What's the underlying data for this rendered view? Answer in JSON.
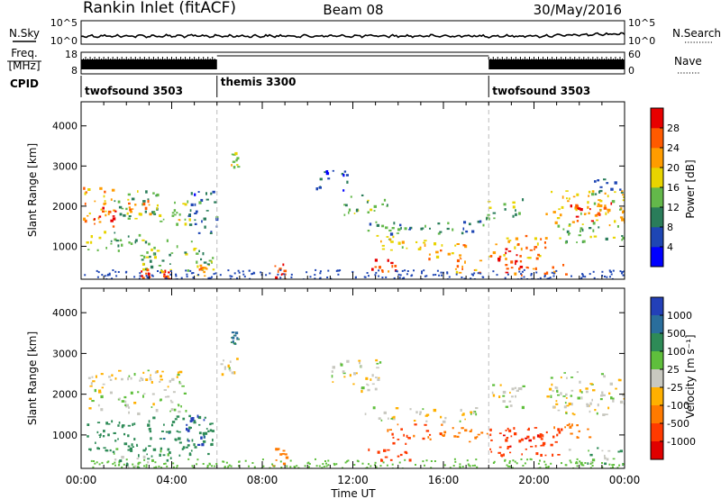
{
  "header": {
    "station": "Rankin Inlet (fitACF)",
    "beam": "Beam 08",
    "date": "30/May/2016"
  },
  "noise_panel": {
    "left_label": "N.Sky",
    "right_label": "N.Search",
    "left_ticks": [
      "10^5",
      "10^0"
    ],
    "right_ticks": [
      "10^5",
      "10^0"
    ]
  },
  "freq_panel": {
    "left_label_top": "Freq.",
    "left_label_unit": "[MHz]",
    "left_ticks": [
      "18",
      "8"
    ],
    "right_label": "Nave",
    "right_ticks": [
      "60",
      "0"
    ]
  },
  "cpid_panel": {
    "label": "CPID",
    "segments": [
      {
        "name": "twofsound 3503",
        "start_hour": 0,
        "end_hour": 6
      },
      {
        "name": "themis 3300",
        "start_hour": 6,
        "end_hour": 18
      },
      {
        "name": "twofsound 3503",
        "start_hour": 18,
        "end_hour": 24
      }
    ]
  },
  "colors": {
    "power_scale": [
      "#0000ff",
      "#1e46b4",
      "#2a7d5a",
      "#63b84a",
      "#e8d400",
      "#ff9c00",
      "#ff5a00",
      "#e80000"
    ],
    "velocity_scale": [
      "#2340b8",
      "#2a6e9c",
      "#2e8b57",
      "#5fbf3c",
      "#c8c8c0",
      "#ffb000",
      "#ff7a00",
      "#ff3a00",
      "#e00000"
    ]
  },
  "chart_data": [
    {
      "type": "heatmap",
      "title": "Power",
      "xlabel": "Time UT",
      "ylabel": "Slant Range [km]",
      "x_unit": "hours UT",
      "xlim": [
        0,
        24
      ],
      "ylim": [
        180,
        4600
      ],
      "x_ticks": [
        "00:00",
        "04:00",
        "08:00",
        "12:00",
        "16:00",
        "20:00",
        "00:00"
      ],
      "y_ticks": [
        "1000",
        "2000",
        "3000",
        "4000"
      ],
      "colorbar": {
        "label": "Power [dB]",
        "ticks": [
          "4",
          "8",
          "12",
          "16",
          "20",
          "24",
          "28"
        ],
        "range": [
          0,
          30
        ]
      },
      "regions": [
        {
          "t0": 0.0,
          "t1": 1.5,
          "r0": 1650,
          "r1": 2500,
          "value": 20
        },
        {
          "t0": 0.4,
          "t1": 1.6,
          "r0": 1500,
          "r1": 2000,
          "value": 26
        },
        {
          "t0": 1.4,
          "t1": 3.4,
          "r0": 1700,
          "r1": 2400,
          "value": 12
        },
        {
          "t0": 2.0,
          "t1": 3.1,
          "r0": 1800,
          "r1": 2200,
          "value": 22
        },
        {
          "t0": 3.3,
          "t1": 4.8,
          "r0": 1500,
          "r1": 2200,
          "value": 16
        },
        {
          "t0": 4.6,
          "t1": 6.0,
          "r0": 1300,
          "r1": 2400,
          "value": 8
        },
        {
          "t0": 0.2,
          "t1": 2.6,
          "r0": 900,
          "r1": 1400,
          "value": 12
        },
        {
          "t0": 2.6,
          "t1": 5.9,
          "r0": 400,
          "r1": 1200,
          "value": 14
        },
        {
          "t0": 2.6,
          "t1": 3.0,
          "r0": 180,
          "r1": 450,
          "value": 28
        },
        {
          "t0": 3.6,
          "t1": 3.9,
          "r0": 180,
          "r1": 480,
          "value": 24
        },
        {
          "t0": 5.1,
          "t1": 5.5,
          "r0": 200,
          "r1": 600,
          "value": 20
        },
        {
          "t0": 6.6,
          "t1": 6.9,
          "r0": 2950,
          "r1": 3350,
          "value": 16
        },
        {
          "t0": 8.5,
          "t1": 9.0,
          "r0": 180,
          "r1": 600,
          "value": 26
        },
        {
          "t0": 10.3,
          "t1": 11.8,
          "r0": 2400,
          "r1": 2900,
          "value": 6
        },
        {
          "t0": 11.5,
          "t1": 13.6,
          "r0": 1800,
          "r1": 2300,
          "value": 12
        },
        {
          "t0": 12.5,
          "t1": 17.8,
          "r0": 1300,
          "r1": 1650,
          "value": 10
        },
        {
          "t0": 13.0,
          "t1": 15.5,
          "r0": 900,
          "r1": 1300,
          "value": 18
        },
        {
          "t0": 15.2,
          "t1": 17.2,
          "r0": 700,
          "r1": 1100,
          "value": 20
        },
        {
          "t0": 12.8,
          "t1": 13.9,
          "r0": 400,
          "r1": 700,
          "value": 26
        },
        {
          "t0": 16.5,
          "t1": 17.6,
          "r0": 350,
          "r1": 700,
          "value": 22
        },
        {
          "t0": 17.8,
          "t1": 19.5,
          "r0": 1700,
          "r1": 2200,
          "value": 12
        },
        {
          "t0": 18.0,
          "t1": 20.5,
          "r0": 700,
          "r1": 1300,
          "value": 20
        },
        {
          "t0": 18.3,
          "t1": 19.4,
          "r0": 600,
          "r1": 1000,
          "value": 28
        },
        {
          "t0": 18.5,
          "t1": 21.5,
          "r0": 300,
          "r1": 600,
          "value": 24
        },
        {
          "t0": 20.5,
          "t1": 24.0,
          "r0": 1500,
          "r1": 2400,
          "value": 18
        },
        {
          "t0": 21.5,
          "t1": 23.5,
          "r0": 1600,
          "r1": 2100,
          "value": 26
        },
        {
          "t0": 21.0,
          "t1": 24.0,
          "r0": 1100,
          "r1": 1500,
          "value": 12
        },
        {
          "t0": 22.5,
          "t1": 24.0,
          "r0": 2300,
          "r1": 2700,
          "value": 8
        }
      ]
    },
    {
      "type": "heatmap",
      "title": "Velocity",
      "xlabel": "Time UT",
      "ylabel": "Slant Range [km]",
      "x_unit": "hours UT",
      "xlim": [
        0,
        24
      ],
      "ylim": [
        180,
        4600
      ],
      "x_ticks": [
        "00:00",
        "04:00",
        "08:00",
        "12:00",
        "16:00",
        "20:00",
        "00:00"
      ],
      "y_ticks": [
        "1000",
        "2000",
        "3000",
        "4000"
      ],
      "colorbar": {
        "label": "Velocity [m s⁻¹]",
        "ticks": [
          "1000",
          "500",
          "100",
          "25",
          "-25",
          "-100",
          "-500",
          "-1000"
        ]
      },
      "regions": [
        {
          "t0": 0.3,
          "t1": 4.6,
          "r0": 1550,
          "r1": 2600,
          "value": 0
        },
        {
          "t0": 0.2,
          "t1": 2.8,
          "r0": 600,
          "r1": 1400,
          "value": 150
        },
        {
          "t0": 2.7,
          "t1": 5.9,
          "r0": 500,
          "r1": 1500,
          "value": 250
        },
        {
          "t0": 4.6,
          "t1": 5.4,
          "r0": 700,
          "r1": 1500,
          "value": 900
        },
        {
          "t0": 0.8,
          "t1": 4.0,
          "r0": 180,
          "r1": 700,
          "value": 60
        },
        {
          "t0": 6.0,
          "t1": 6.9,
          "r0": 2500,
          "r1": 2900,
          "value": 0
        },
        {
          "t0": 6.6,
          "t1": 6.9,
          "r0": 3250,
          "r1": 3550,
          "value": 300
        },
        {
          "t0": 8.4,
          "t1": 9.1,
          "r0": 250,
          "r1": 700,
          "value": -200
        },
        {
          "t0": 11.0,
          "t1": 13.2,
          "r0": 2100,
          "r1": 2900,
          "value": 0
        },
        {
          "t0": 12.5,
          "t1": 17.5,
          "r0": 1350,
          "r1": 1700,
          "value": 0
        },
        {
          "t0": 13.5,
          "t1": 16.0,
          "r0": 800,
          "r1": 1300,
          "value": -300
        },
        {
          "t0": 16.0,
          "t1": 18.0,
          "r0": 800,
          "r1": 1200,
          "value": -150
        },
        {
          "t0": 12.5,
          "t1": 14.6,
          "r0": 380,
          "r1": 700,
          "value": -450
        },
        {
          "t0": 17.8,
          "t1": 19.5,
          "r0": 1700,
          "r1": 2300,
          "value": 0
        },
        {
          "t0": 18.0,
          "t1": 21.2,
          "r0": 500,
          "r1": 1200,
          "value": -400
        },
        {
          "t0": 18.6,
          "t1": 20.4,
          "r0": 700,
          "r1": 1050,
          "value": -700
        },
        {
          "t0": 20.5,
          "t1": 24.0,
          "r0": 1500,
          "r1": 2600,
          "value": 0
        },
        {
          "t0": 20.8,
          "t1": 22.5,
          "r0": 900,
          "r1": 1300,
          "value": -120
        },
        {
          "t0": 21.5,
          "t1": 24.0,
          "r0": 300,
          "r1": 700,
          "value": 40
        }
      ]
    }
  ]
}
